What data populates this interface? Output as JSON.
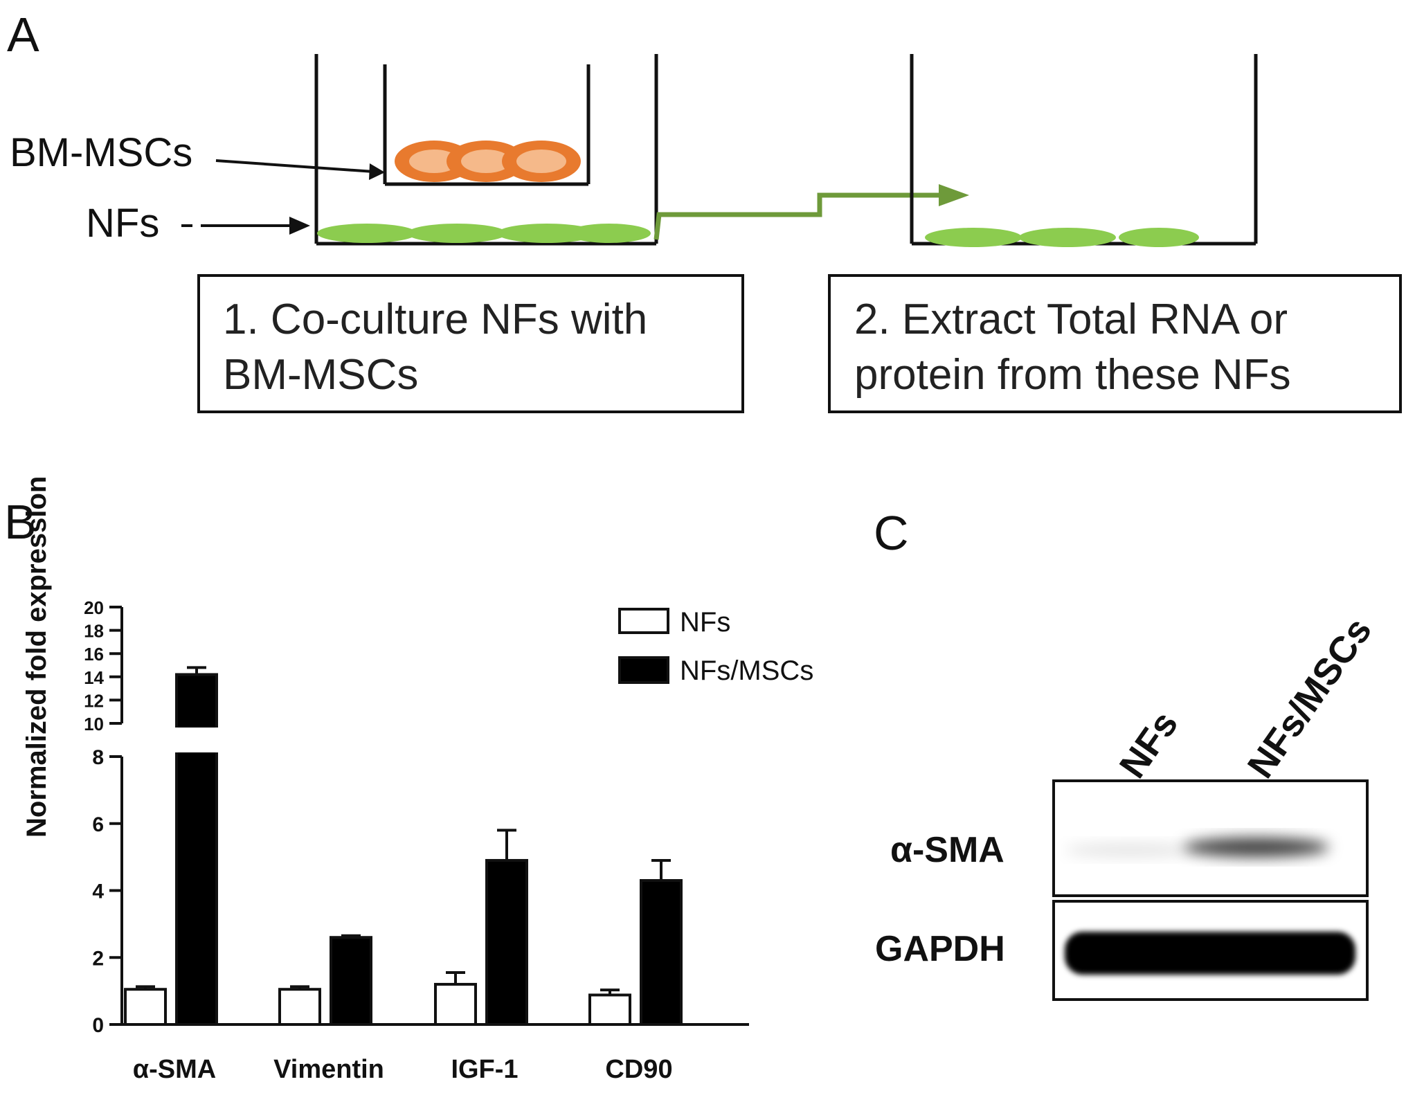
{
  "panels": {
    "a": "A",
    "b": "B",
    "c": "C"
  },
  "diagram": {
    "label_mscs": "BM-MSCs",
    "label_nfs": "NFs",
    "step1_line1": "1. Co-culture NFs with",
    "step1_line2": "BM-MSCs",
    "step2_line1": "2. Extract Total RNA or",
    "step2_line2": "protein from these NFs",
    "colors": {
      "msc": "#e87a2e",
      "msc_inner": "#f5b98a",
      "nf": "#8ccc4f",
      "arrow": "#6e9a3a"
    }
  },
  "chart_data": {
    "type": "bar",
    "categories": [
      "α-SMA",
      "Vimentin",
      "IGF-1",
      "CD90"
    ],
    "series": [
      {
        "name": "NFs",
        "values": [
          1.05,
          1.05,
          1.2,
          0.88
        ],
        "errors": [
          0.08,
          0.08,
          0.35,
          0.15
        ],
        "color": "#ffffff"
      },
      {
        "name": "NFs/MSCs",
        "values": [
          14.2,
          2.6,
          4.9,
          4.3
        ],
        "errors": [
          0.6,
          0.05,
          0.9,
          0.6
        ],
        "color": "#000000"
      }
    ],
    "ylabel": "Normalized fold expression",
    "axis_break": {
      "lower": [
        0,
        8
      ],
      "upper": [
        10,
        20
      ]
    },
    "yticks_lower": [
      "0",
      "2",
      "4",
      "6",
      "8"
    ],
    "yticks_upper": [
      "10",
      "12",
      "14",
      "16",
      "18",
      "20"
    ],
    "legend_position": "top-right"
  },
  "blot": {
    "lanes": [
      "NFs",
      "NFs/MSCs"
    ],
    "rows": [
      "α-SMA",
      "GAPDH"
    ],
    "intensity": {
      "α-SMA": [
        0.1,
        0.75
      ],
      "GAPDH": [
        1.0,
        1.0
      ]
    }
  }
}
